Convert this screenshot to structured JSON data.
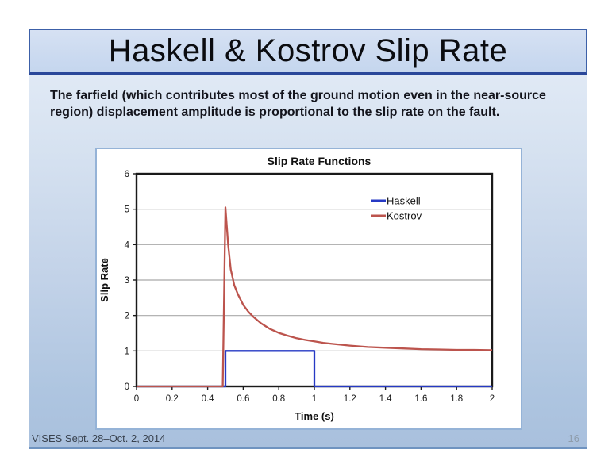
{
  "slide": {
    "title": "Haskell & Kostrov Slip Rate",
    "body_text": "The farfield (which contributes most of the ground motion even in the near-source region) displacement amplitude is proportional to the slip rate on the fault.",
    "footer_left": "VISES Sept. 28–Oct. 2, 2014",
    "page_number": "16"
  },
  "colors": {
    "haskell_blue": "#2639c4",
    "kostrov_red": "#bc544d",
    "gridline": "#a9a9a9",
    "plot_frame": "#1a1a1a",
    "chart_border": "#95b3d7",
    "slide_accent_border": "#3c60a8"
  },
  "chart_data": {
    "type": "line",
    "title": "Slip Rate Functions",
    "xlabel": "Time (s)",
    "ylabel": "Slip Rate",
    "xlim": [
      0,
      2
    ],
    "ylim": [
      0,
      6
    ],
    "xticks": [
      0,
      0.2,
      0.4,
      0.6,
      0.8,
      1,
      1.2,
      1.4,
      1.6,
      1.8,
      2
    ],
    "xtick_labels": [
      "0",
      "0.2",
      "0.4",
      "0.6",
      "0.8",
      "1",
      "1.2",
      "1.4",
      "1.6",
      "1.8",
      "2"
    ],
    "yticks": [
      0,
      1,
      2,
      3,
      4,
      5,
      6
    ],
    "ytick_labels": [
      "0",
      "1",
      "2",
      "3",
      "4",
      "5",
      "6"
    ],
    "grid": "horizontal",
    "legend_position": "inside-upper-right",
    "series": [
      {
        "name": "Haskell",
        "color": "#2639c4",
        "x": [
          0,
          0.5,
          0.5,
          1.0,
          1.0,
          2.0
        ],
        "y": [
          0,
          0,
          1,
          1,
          0,
          0
        ]
      },
      {
        "name": "Kostrov",
        "color": "#bc544d",
        "x": [
          0,
          0.485,
          0.5,
          0.515,
          0.53,
          0.55,
          0.57,
          0.6,
          0.63,
          0.66,
          0.7,
          0.75,
          0.8,
          0.85,
          0.9,
          0.95,
          1.0,
          1.05,
          1.1,
          1.2,
          1.3,
          1.4,
          1.5,
          1.6,
          1.7,
          1.8,
          1.9,
          2.0
        ],
        "y": [
          0,
          0,
          5.05,
          4.0,
          3.3,
          2.85,
          2.6,
          2.3,
          2.1,
          1.95,
          1.78,
          1.62,
          1.51,
          1.43,
          1.36,
          1.31,
          1.27,
          1.23,
          1.2,
          1.15,
          1.11,
          1.09,
          1.07,
          1.05,
          1.04,
          1.03,
          1.03,
          1.02
        ]
      }
    ]
  }
}
